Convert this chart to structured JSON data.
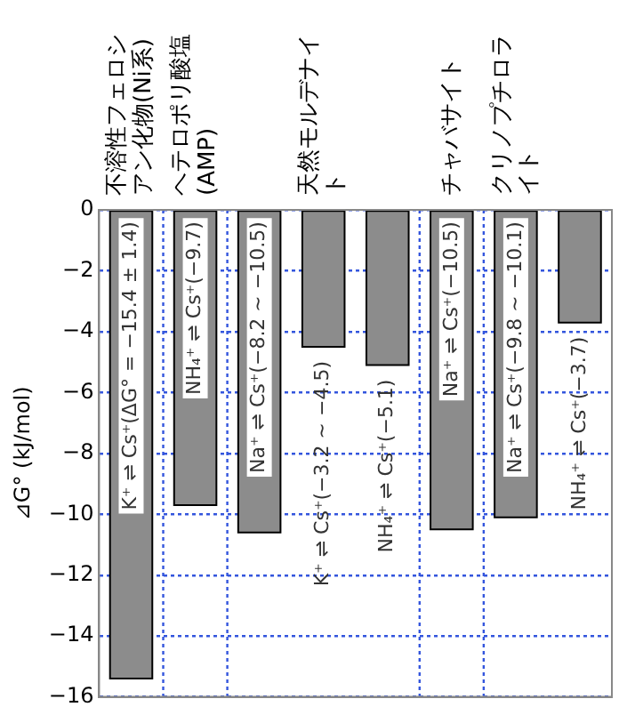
{
  "chart_data": {
    "type": "bar",
    "ylabel": "⊿G° (kJ/mol)",
    "categories": [
      "不溶性フェロシアン化物(Ni系)",
      "ヘテロポリ酸塩(AMP)",
      null,
      "天然モルデナイト",
      null,
      "チャバサイト",
      "クリノプチロライト",
      null
    ],
    "values": [
      -15.4,
      -9.7,
      -10.6,
      -4.5,
      -5.1,
      -10.5,
      -10.1,
      -3.7
    ],
    "value_labels": [
      "K⁺ ⇌ Cs⁺(ΔG° = −15.4 ± 1.4)",
      "NH₄⁺ ⇌ Cs⁺(−9.7)",
      "Na⁺ ⇌ Cs⁺(−8.2 ~ −10.5)",
      "K⁺ ⇌ Cs⁺(−3.2 ~ −4.5)",
      "NH₄⁺ ⇌ Cs⁺(−5.1)",
      "Na⁺ ⇌ Cs⁺(−10.5)",
      "Na⁺ ⇌ Cs⁺(−9.8 ~ −10.1)",
      "NH₄⁺ ⇌ Cs⁺(−3.7)"
    ],
    "color": "#8c8c8c",
    "ylim": [
      -16,
      0
    ],
    "yticks": [
      0,
      -2,
      -4,
      -6,
      -8,
      -10,
      -12,
      -14,
      -16
    ],
    "grid": "y",
    "legend": false
  }
}
